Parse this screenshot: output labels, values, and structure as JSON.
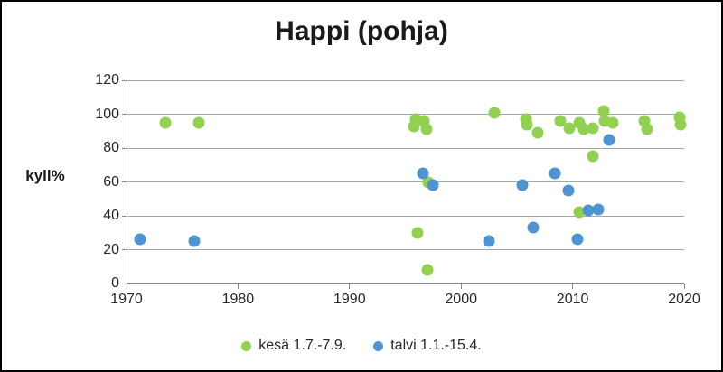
{
  "chart_data": {
    "type": "scatter",
    "title": "Happi (pohja)",
    "xlabel": "",
    "ylabel": "kyll%",
    "xlim": [
      1970,
      2020
    ],
    "ylim": [
      0,
      120
    ],
    "x_ticks": [
      1970,
      1980,
      1990,
      2000,
      2010,
      2020
    ],
    "y_ticks": [
      0,
      20,
      40,
      60,
      80,
      100,
      120
    ],
    "grid": "horizontal",
    "legend_position": "bottom",
    "series": [
      {
        "name": "kesä 1.7.-7.9.",
        "color": "#92d050",
        "points": [
          [
            1973.5,
            95
          ],
          [
            1976.5,
            95
          ],
          [
            1995.9,
            97
          ],
          [
            1995.8,
            93
          ],
          [
            1996.7,
            96
          ],
          [
            1996.9,
            91
          ],
          [
            1996.1,
            30
          ],
          [
            1997.0,
            8
          ],
          [
            1997.1,
            60
          ],
          [
            2003.0,
            101
          ],
          [
            2005.8,
            97
          ],
          [
            2005.9,
            94
          ],
          [
            2006.9,
            89
          ],
          [
            2008.9,
            96
          ],
          [
            2009.7,
            92
          ],
          [
            2010.6,
            95
          ],
          [
            2011.0,
            91
          ],
          [
            2011.8,
            92
          ],
          [
            2010.6,
            42
          ],
          [
            2011.8,
            75
          ],
          [
            2012.8,
            102
          ],
          [
            2012.9,
            96
          ],
          [
            2013.6,
            95
          ],
          [
            2016.4,
            96
          ],
          [
            2016.7,
            91
          ],
          [
            2019.6,
            98
          ],
          [
            2019.7,
            94
          ]
        ]
      },
      {
        "name": "talvi 1.1.-15.4.",
        "color": "#4f94d2",
        "points": [
          [
            1971.2,
            26
          ],
          [
            1976.1,
            25
          ],
          [
            1996.6,
            65
          ],
          [
            1997.5,
            58
          ],
          [
            2002.5,
            25
          ],
          [
            2005.5,
            58
          ],
          [
            2006.5,
            33
          ],
          [
            2008.4,
            65
          ],
          [
            2009.6,
            55
          ],
          [
            2010.4,
            26
          ],
          [
            2011.4,
            43
          ],
          [
            2012.3,
            44
          ],
          [
            2013.3,
            85
          ]
        ]
      }
    ]
  }
}
